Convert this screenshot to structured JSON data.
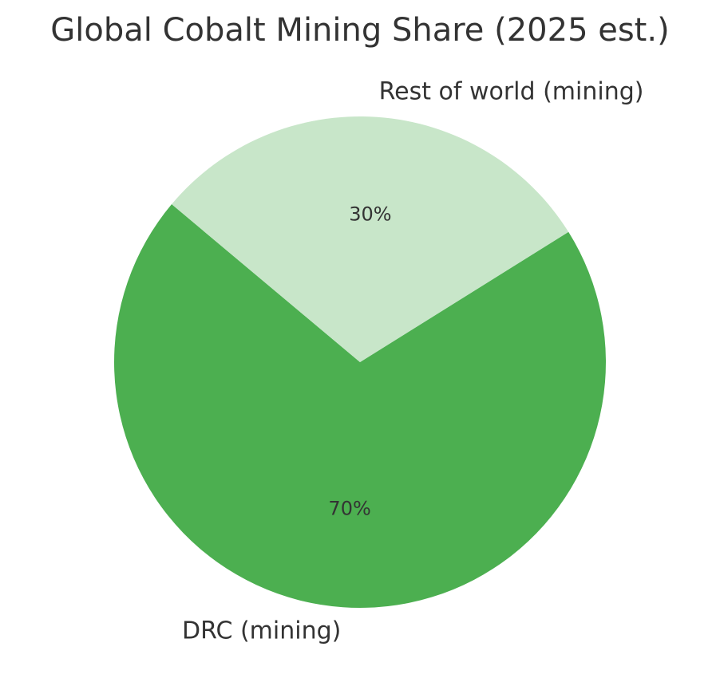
{
  "chart_data": {
    "type": "pie",
    "title": "Global Cobalt Mining Share (2025 est.)",
    "categories": [
      "DRC (mining)",
      "Rest of world (mining)"
    ],
    "values": [
      70,
      30
    ],
    "value_labels": [
      "70%",
      "30%"
    ],
    "colors": [
      "#4caf50",
      "#c8e6c9"
    ]
  }
}
